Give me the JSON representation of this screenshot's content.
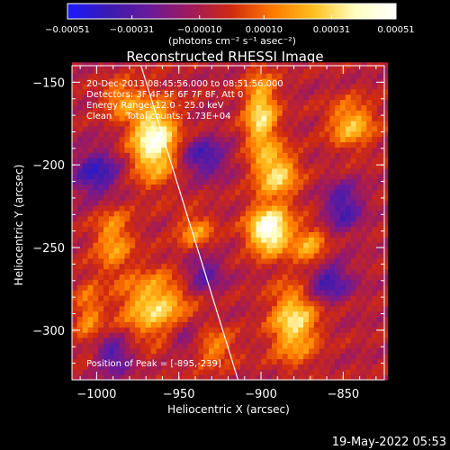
{
  "chart_data": {
    "type": "heatmap",
    "title": "Reconstructed RHESSI Image",
    "xlabel": "Heliocentric X (arcsec)",
    "ylabel": "Heliocentric Y (arcsec)",
    "xlim": [
      -1015,
      -825
    ],
    "ylim": [
      -330,
      -140
    ],
    "x_ticks": [
      {
        "value": -1000,
        "label": "−1000"
      },
      {
        "value": -950,
        "label": "−950"
      },
      {
        "value": -900,
        "label": "−900"
      },
      {
        "value": -850,
        "label": "−850"
      }
    ],
    "y_ticks": [
      {
        "value": -150,
        "label": "−150"
      },
      {
        "value": -200,
        "label": "−200"
      },
      {
        "value": -250,
        "label": "−250"
      },
      {
        "value": -300,
        "label": "−300"
      }
    ],
    "colorbar": {
      "range": [
        -0.00051,
        0.00051
      ],
      "ticks": [
        {
          "value": -0.00051,
          "label": "−0.00051"
        },
        {
          "value": -0.00031,
          "label": "−0.00031"
        },
        {
          "value": -0.0001,
          "label": "−0.00010"
        },
        {
          "value": 0.0001,
          "label": "0.00010"
        },
        {
          "value": 0.00031,
          "label": "0.00031"
        },
        {
          "value": 0.00051,
          "label": "0.00051"
        }
      ],
      "units_label": "(photons cm⁻² s⁻¹ asec⁻²)",
      "colors": [
        "#1a1aff",
        "#3a1ab0",
        "#6a1a9a",
        "#a01a5a",
        "#d02a10",
        "#ff7a00",
        "#ffc020",
        "#ffffc0",
        "#ffffff"
      ]
    },
    "annotations": [
      "20-Dec-2013 08:45:56.000 to 08:51:56.000",
      "Detectors: 3F 4F 5F 6F 7F 8F, Att 0",
      "Energy Range: 12.0 - 25.0 keV",
      "Clean     Total counts: 1.73E+04"
    ],
    "peak_label": "Position of Peak = [-895,-239]",
    "peak": {
      "x": -895,
      "y": -239
    },
    "limb_line": [
      {
        "x": -973,
        "y": -140
      },
      {
        "x": -914,
        "y": -330
      }
    ],
    "hotspots": [
      {
        "x": -965,
        "y": -185,
        "amp": 1.0,
        "sx": 10,
        "sy": 16
      },
      {
        "x": -895,
        "y": -239,
        "amp": 1.1,
        "sx": 9,
        "sy": 10
      },
      {
        "x": -900,
        "y": -170,
        "amp": 0.75,
        "sx": 7,
        "sy": 18
      },
      {
        "x": -890,
        "y": -205,
        "amp": 0.7,
        "sx": 9,
        "sy": 10
      },
      {
        "x": -965,
        "y": -285,
        "amp": 0.7,
        "sx": 14,
        "sy": 14
      },
      {
        "x": -880,
        "y": -295,
        "amp": 0.75,
        "sx": 10,
        "sy": 16
      },
      {
        "x": -845,
        "y": -175,
        "amp": 0.6,
        "sx": 10,
        "sy": 10
      },
      {
        "x": -990,
        "y": -245,
        "amp": 0.5,
        "sx": 8,
        "sy": 14
      },
      {
        "x": -940,
        "y": -240,
        "amp": 0.45,
        "sx": 8,
        "sy": 8
      },
      {
        "x": -985,
        "y": -160,
        "amp": 0.45,
        "sx": 8,
        "sy": 8
      },
      {
        "x": -870,
        "y": -250,
        "amp": 0.5,
        "sx": 7,
        "sy": 10
      },
      {
        "x": -930,
        "y": -310,
        "amp": 0.45,
        "sx": 10,
        "sy": 8
      },
      {
        "x": -1005,
        "y": -290,
        "amp": 0.4,
        "sx": 6,
        "sy": 14
      }
    ],
    "coldspots": [
      {
        "x": -1000,
        "y": -205,
        "amp": -0.6,
        "sx": 10,
        "sy": 10
      },
      {
        "x": -935,
        "y": -195,
        "amp": -0.55,
        "sx": 10,
        "sy": 8
      },
      {
        "x": -850,
        "y": -225,
        "amp": -0.55,
        "sx": 8,
        "sy": 10
      },
      {
        "x": -860,
        "y": -270,
        "amp": -0.6,
        "sx": 10,
        "sy": 8
      },
      {
        "x": -935,
        "y": -265,
        "amp": -0.45,
        "sx": 8,
        "sy": 8
      },
      {
        "x": -990,
        "y": -315,
        "amp": -0.5,
        "sx": 8,
        "sy": 8
      },
      {
        "x": -945,
        "y": -305,
        "amp": -0.45,
        "sx": 8,
        "sy": 6
      }
    ],
    "grid": false
  },
  "footer": {
    "timestamp": "19-May-2022 05:53"
  }
}
